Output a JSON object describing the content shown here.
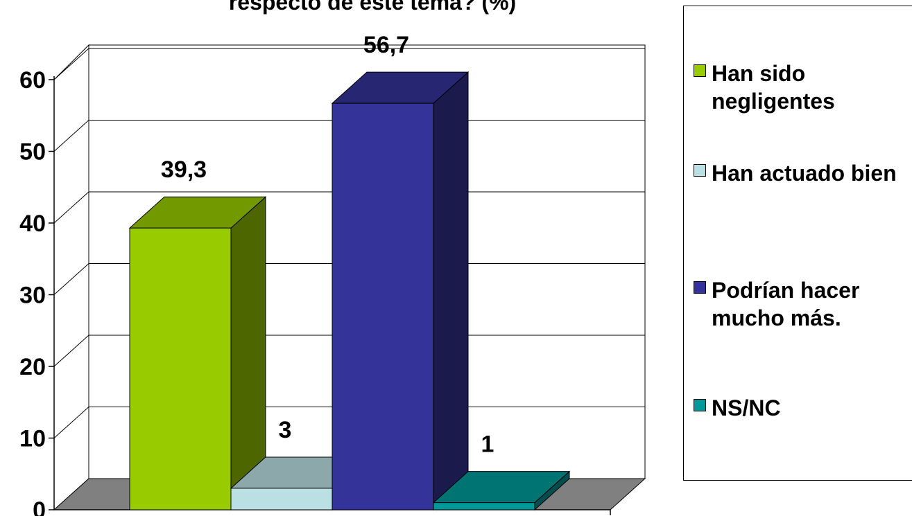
{
  "chart_data": {
    "type": "bar",
    "title": "respecto de este tema? (%)",
    "categories": [
      "Han sido negligentes",
      "Han actuado bien",
      "Podrían hacer mucho más.",
      "NS/NC"
    ],
    "values": [
      39.3,
      3,
      56.7,
      1
    ],
    "data_labels": [
      "39,3",
      "3",
      "56,7",
      "1"
    ],
    "colors": [
      "#99cc00",
      "#bbe0e3",
      "#333399",
      "#009999"
    ],
    "ylim": [
      0,
      60
    ],
    "yticks": [
      "0",
      "10",
      "20",
      "30",
      "40",
      "50",
      "60"
    ],
    "grid": true,
    "three_d": true,
    "legend_position": "right"
  }
}
